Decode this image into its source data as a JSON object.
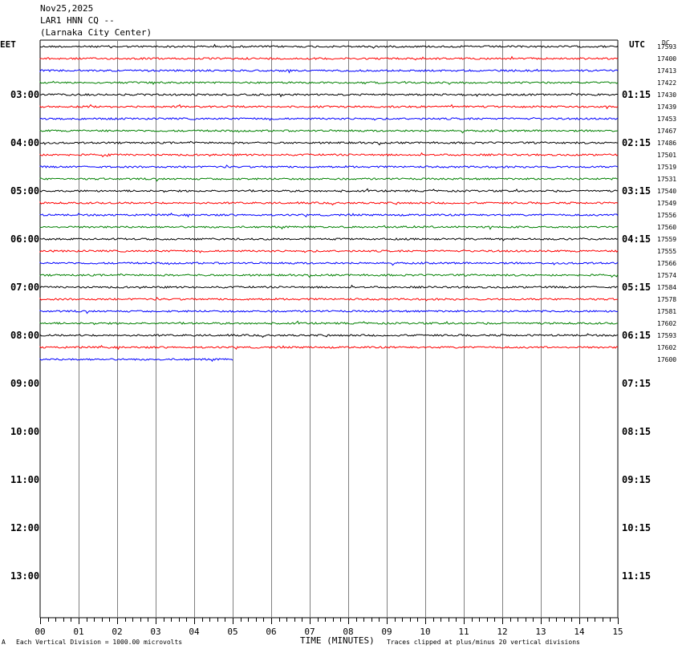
{
  "header": {
    "date": "Nov25,2025",
    "station": "LAR1 HNN CQ --",
    "location": "(Larnaka City Center)"
  },
  "left_zone_label": "EET",
  "right_zone_label": "UTC",
  "dc_label": "DC",
  "footer": {
    "left_mark": "A",
    "scale_note": "Each Vertical Division = 1000.00 microvolts",
    "x_title": "TIME (MINUTES)",
    "clip_note": "Traces clipped at plus/minus 20 vertical divisions"
  },
  "colors": {
    "cycle": [
      "#000000",
      "#ff0000",
      "#0000ff",
      "#008000"
    ],
    "grid": "#808080"
  },
  "chart_data": {
    "type": "line",
    "title": "",
    "xlabel": "TIME (MINUTES)",
    "ylabel": "",
    "xlim": [
      0,
      15
    ],
    "x_ticks": [
      "00",
      "01",
      "02",
      "03",
      "04",
      "05",
      "06",
      "07",
      "08",
      "09",
      "10",
      "11",
      "12",
      "13",
      "14",
      "15"
    ],
    "left_time_labels": [
      "03:00",
      "04:00",
      "05:00",
      "06:00",
      "07:00",
      "08:00",
      "09:00",
      "10:00",
      "11:00",
      "12:00",
      "13:00"
    ],
    "right_time_labels": [
      "01:15",
      "02:15",
      "03:15",
      "04:15",
      "05:15",
      "06:15",
      "07:15",
      "08:15",
      "09:15",
      "10:15",
      "11:15"
    ],
    "trace_dc_values": [
      "17593",
      "17400",
      "17413",
      "17422",
      "17430",
      "17439",
      "17453",
      "17467",
      "17486",
      "17501",
      "17519",
      "17531",
      "17540",
      "17549",
      "17556",
      "17560",
      "17559",
      "17555",
      "17566",
      "17574",
      "17584",
      "17578",
      "17581",
      "17602",
      "17593",
      "17602",
      "17600"
    ],
    "last_trace_end_minute": 5.0,
    "grid": true
  }
}
